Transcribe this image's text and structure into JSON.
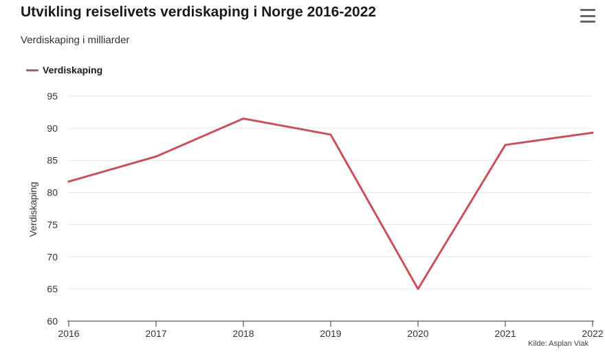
{
  "header": {
    "title": "Utvikling reiselivets verdiskaping i Norge 2016-2022",
    "subtitle": "Verdiskaping i milliarder"
  },
  "footer": {
    "source": "Kilde: Asplan Viak"
  },
  "icons": {
    "menu": "hamburger-menu-icon"
  },
  "colors": {
    "series": "#c8505d",
    "grid": "#e6e6e6",
    "axis": "#333333"
  },
  "chart_data": {
    "type": "line",
    "title": "Utvikling reiselivets verdiskaping i Norge 2016-2022",
    "subtitle": "Verdiskaping i milliarder",
    "xlabel": "",
    "ylabel": "Verdiskaping",
    "x": [
      "2016",
      "2017",
      "2018",
      "2019",
      "2020",
      "2021",
      "2022"
    ],
    "series": [
      {
        "name": "Verdiskaping",
        "values": [
          81.7,
          85.6,
          91.5,
          89.0,
          65.0,
          87.4,
          89.3
        ]
      }
    ],
    "ylim": [
      60,
      95
    ],
    "yticks": [
      60,
      65,
      70,
      75,
      80,
      85,
      90,
      95
    ],
    "grid": true,
    "legend": "top-left"
  }
}
